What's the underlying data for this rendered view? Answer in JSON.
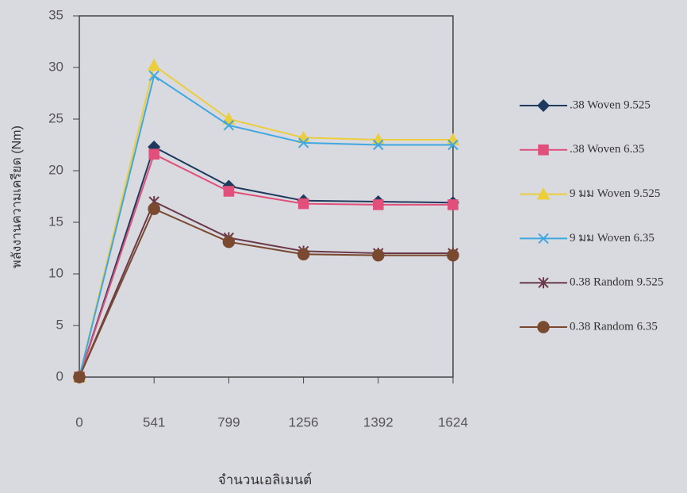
{
  "chart_data": {
    "type": "line",
    "y_label": "พลังงานความเครียด (Nm)",
    "x_label": "จำนวนเอลิเมนต์",
    "categories": [
      "0",
      "541",
      "799",
      "1256",
      "1392",
      "1624"
    ],
    "ylim": [
      0,
      35
    ],
    "yticks": [
      0,
      5,
      10,
      15,
      20,
      25,
      30,
      35
    ],
    "grid": false,
    "legend": "right",
    "series": [
      {
        "name": ".38 Woven 9.525",
        "color": "#1f3a5f",
        "marker": "diamond",
        "values": [
          0,
          22.3,
          18.5,
          17.1,
          17.0,
          16.9
        ]
      },
      {
        "name": ".38 Woven 6.35",
        "color": "#e0507a",
        "marker": "square",
        "values": [
          0,
          21.6,
          18.0,
          16.8,
          16.7,
          16.7
        ]
      },
      {
        "name": "9 มม Woven 9.525",
        "color": "#eccd3a",
        "marker": "triangle",
        "values": [
          0,
          30.2,
          25.0,
          23.2,
          23.0,
          23.0
        ]
      },
      {
        "name": "9 มม Woven 6.35",
        "color": "#3fa8e0",
        "marker": "x",
        "values": [
          0,
          29.2,
          24.4,
          22.7,
          22.5,
          22.5
        ]
      },
      {
        "name": "0.38 Random 9.525",
        "color": "#6b3a4a",
        "marker": "star",
        "values": [
          0,
          17.0,
          13.5,
          12.2,
          12.0,
          12.0
        ]
      },
      {
        "name": "0.38 Random 6.35",
        "color": "#7a4a30",
        "marker": "circle",
        "values": [
          0,
          16.3,
          13.1,
          11.9,
          11.8,
          11.8
        ]
      }
    ]
  }
}
